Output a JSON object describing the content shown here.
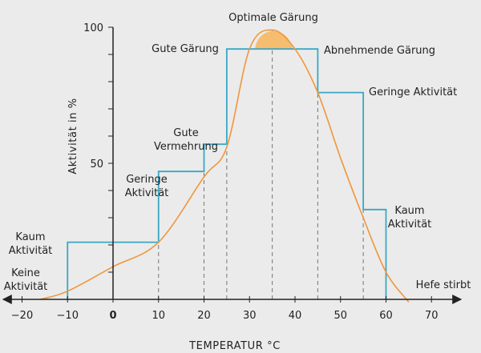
{
  "chart_data": {
    "type": "line",
    "title": "",
    "xlabel": "TEMPERATUR °C",
    "ylabel": "Aktivität in %",
    "xlim": [
      -25,
      70
    ],
    "ylim": [
      0,
      100
    ],
    "x_ticks": [
      {
        "value": -20,
        "label": "−20"
      },
      {
        "value": -10,
        "label": "−10"
      },
      {
        "value": 0,
        "label": "0"
      },
      {
        "value": 10,
        "label": "10"
      },
      {
        "value": 20,
        "label": "20"
      },
      {
        "value": 30,
        "label": "30"
      },
      {
        "value": 40,
        "label": "40"
      },
      {
        "value": 50,
        "label": "50"
      },
      {
        "value": 60,
        "label": "60"
      },
      {
        "value": 70,
        "label": "70"
      }
    ],
    "y_ticks": [
      {
        "value": 50,
        "label": "50"
      },
      {
        "value": 100,
        "label": "100"
      }
    ],
    "grid": false,
    "series": [
      {
        "kind": "step",
        "color": "#3aa7c4",
        "x": [
          -10,
          -10,
          10,
          10,
          20,
          20,
          25,
          25,
          45,
          45,
          55,
          55,
          60,
          60
        ],
        "y": [
          0,
          21,
          21,
          47,
          47,
          57,
          57,
          92,
          92,
          76,
          76,
          33,
          33,
          0
        ]
      },
      {
        "kind": "curve",
        "color": "#f0963c",
        "x": [
          -16,
          -10,
          0,
          10,
          20,
          25,
          30,
          35,
          40,
          45,
          50,
          55,
          60,
          65
        ],
        "y": [
          0,
          3,
          12,
          21,
          45,
          56,
          92,
          99,
          92,
          76,
          52,
          30,
          10,
          -1
        ]
      }
    ],
    "optimum": {
      "x_from": 31.2,
      "x_to": 39.5,
      "color": "#f7bd6f",
      "stroke": "#f0963c"
    },
    "dashed_lines": [
      {
        "x": 10,
        "y": 21
      },
      {
        "x": 20,
        "y": 47
      },
      {
        "x": 25,
        "y": 56
      },
      {
        "x": 35,
        "y": 99
      },
      {
        "x": 45,
        "y": 76
      },
      {
        "x": 55,
        "y": 33
      }
    ],
    "annotations": [
      {
        "lines": [
          "Keine",
          "Aktivität"
        ],
        "anchor": "middle"
      },
      {
        "lines": [
          "Kaum",
          "Aktivität"
        ],
        "anchor": "middle"
      },
      {
        "lines": [
          "Geringe",
          "Aktivität"
        ],
        "anchor": "middle"
      },
      {
        "lines": [
          "Gute",
          "Vermehrung"
        ],
        "anchor": "middle"
      },
      {
        "lines": [
          "Gute Gärung"
        ],
        "anchor": "middle"
      },
      {
        "lines": [
          "Optimale Gärung"
        ],
        "anchor": "middle"
      },
      {
        "lines": [
          "Abnehmende Gärung"
        ],
        "anchor": "start"
      },
      {
        "lines": [
          "Geringe Aktivität"
        ],
        "anchor": "start"
      },
      {
        "lines": [
          "Kaum",
          "Aktivität"
        ],
        "anchor": "middle"
      },
      {
        "lines": [
          "Hefe stirbt"
        ],
        "anchor": "middle"
      }
    ]
  }
}
